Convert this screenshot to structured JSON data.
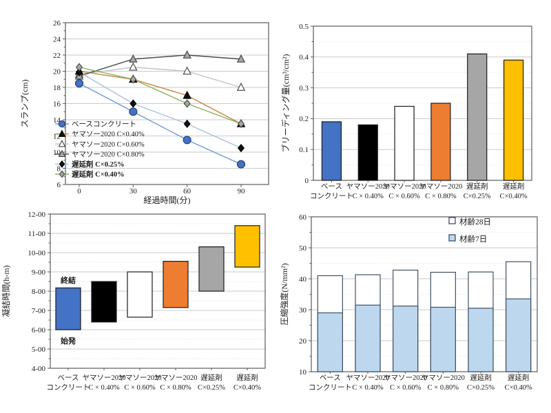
{
  "page": {
    "background": "#FFFFFF"
  },
  "categories": {
    "line1": [
      "ベース",
      "ヤマソー2020",
      "ヤマソー2020",
      "ヤマソー2020",
      "遅延剤",
      "遅延剤"
    ],
    "line2": [
      "コンクリート",
      "C × 0.40%",
      "C × 0.60%",
      "C × 0.80%",
      "C×0.25%",
      "C×0.40%"
    ]
  },
  "chart_data": [
    {
      "id": "slump",
      "type": "line",
      "title": "",
      "xlabel": "経過時間(分)",
      "ylabel": "スランプ(cm)",
      "x": [
        0,
        30,
        60,
        90
      ],
      "ylim": [
        6,
        26
      ],
      "ytick_step": 2,
      "minor_tick_step": 1,
      "grid": "horizontal, every 2",
      "legend_position": "inside lower-left",
      "series": [
        {
          "name": "ベースコンクリート",
          "values": [
            18.5,
            15.0,
            11.5,
            8.5
          ],
          "line_color": "#6D9BD1",
          "marker": "circle",
          "marker_fill": "#4472C4",
          "marker_stroke": "#1F3864",
          "bold_legend": false
        },
        {
          "name": "ヤマソー2020 C×0.40%",
          "values": [
            20.0,
            19.0,
            17.0,
            13.5
          ],
          "line_color": "#C8823C",
          "marker": "triangle",
          "marker_fill": "#111111",
          "marker_stroke": "#000000",
          "bold_legend": false
        },
        {
          "name": "ヤマソー2020 C×0.60%",
          "values": [
            19.6,
            20.5,
            20.0,
            18.0
          ],
          "line_color": "#C3C3C3",
          "marker": "triangle",
          "marker_fill": "#FFFFFF",
          "marker_stroke": "#404040",
          "bold_legend": false
        },
        {
          "name": "ヤマソー2020 C×0.80%",
          "values": [
            19.4,
            21.5,
            22.0,
            21.5
          ],
          "line_color": "#4A4A4A",
          "marker": "triangle",
          "marker_fill": "#A6A6A6",
          "marker_stroke": "#404040",
          "bold_legend": false
        },
        {
          "name": "遅延剤 C×0.25%",
          "values": [
            19.9,
            16.0,
            13.5,
            10.5
          ],
          "line_color": "#A9C0DC",
          "marker": "diamond",
          "marker_fill": "#111111",
          "marker_stroke": "#000000",
          "bold_legend": true
        },
        {
          "name": "遅延剤 C×0.40%",
          "values": [
            20.5,
            19.0,
            16.0,
            13.5
          ],
          "line_color": "#85B060",
          "marker": "diamond",
          "marker_fill": "#A6A6A6",
          "marker_stroke": "#404040",
          "bold_legend": true
        }
      ]
    },
    {
      "id": "bleeding",
      "type": "bar",
      "title": "",
      "xlabel": "",
      "ylabel": "ブリーディング量(cm³/cm²)",
      "ylim": [
        0,
        0.5
      ],
      "ytick_step": 0.1,
      "minor_step": 0.05,
      "grid": "horizontal major + dotted minor",
      "values": [
        0.19,
        0.18,
        0.24,
        0.25,
        0.41,
        0.39
      ],
      "colors": [
        "#4472C4",
        "#000000",
        "#FFFFFF",
        "#ED7D31",
        "#A6A6A6",
        "#FFC000"
      ],
      "bar_stroke": "#1A1A1A"
    },
    {
      "id": "setting",
      "type": "rangebar",
      "title": "",
      "xlabel": "",
      "ylabel": "凝結時間(h-m)",
      "ylim": [
        4,
        12
      ],
      "ytick_step": 1,
      "minor_step": 0.5,
      "ytick_labels": [
        "4-00",
        "5-00",
        "6-00",
        "7-00",
        "8-00",
        "9-00",
        "10-00",
        "11-00",
        "12-00"
      ],
      "grid": "horizontal major + dotted minor",
      "ranges": [
        [
          6.0,
          8.17
        ],
        [
          6.4,
          8.5
        ],
        [
          6.65,
          9.0
        ],
        [
          7.15,
          9.55
        ],
        [
          8.0,
          10.3
        ],
        [
          9.25,
          11.4
        ]
      ],
      "colors": [
        "#4472C4",
        "#000000",
        "#FFFFFF",
        "#ED7D31",
        "#A6A6A6",
        "#FFC000"
      ],
      "bar_stroke": "#1A1A1A",
      "annotations": [
        {
          "text": "終結",
          "category_index": 0,
          "value": 8.58
        },
        {
          "text": "始発",
          "category_index": 0,
          "value": 5.42
        }
      ]
    },
    {
      "id": "strength",
      "type": "overlaybar",
      "title": "",
      "xlabel": "",
      "ylabel": "圧縮強度(N/mm²)",
      "ylim": [
        10,
        60
      ],
      "ytick_step": 10,
      "minor_step": 5,
      "grid": "horizontal major + dotted minor",
      "legend_position": "inside upper-right",
      "series": [
        {
          "name": "材齢28日",
          "values": [
            41.0,
            41.3,
            42.8,
            42.1,
            42.2,
            45.5
          ],
          "fill": "#FFFFFF"
        },
        {
          "name": "材齢7日",
          "values": [
            29.0,
            31.5,
            31.2,
            30.8,
            30.5,
            33.5
          ],
          "fill": "#BDD7EE"
        }
      ],
      "bar_stroke": "#3F4F63"
    }
  ]
}
